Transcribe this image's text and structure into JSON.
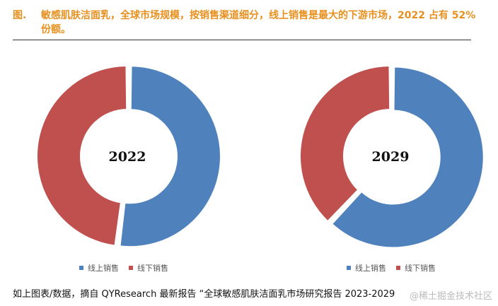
{
  "figure": {
    "label": "图.",
    "title_line1": "敏感肌肤洁面乳，全球市场规模，按销售渠道细分，线上销售是最大的下游市场，2022 占有 52%",
    "title_line2": "份额。"
  },
  "chart_data": [
    {
      "type": "pie",
      "donut": true,
      "center_label": "2022",
      "categories": [
        "线上销售",
        "线下销售"
      ],
      "values": [
        52,
        48
      ],
      "colors": [
        "#4f81bd",
        "#c0504d"
      ],
      "legend": "bottom"
    },
    {
      "type": "pie",
      "donut": true,
      "center_label": "2029",
      "categories": [
        "线上销售",
        "线下销售"
      ],
      "values": [
        62,
        38
      ],
      "colors": [
        "#4f81bd",
        "#c0504d"
      ],
      "legend": "bottom"
    }
  ],
  "source_text": "如上图表/数据，摘自 QYResearch 最新报告 “全球敏感肌肤洁面乳市场研究报告 2023-2029",
  "watermark": "@稀土掘金技术社区"
}
